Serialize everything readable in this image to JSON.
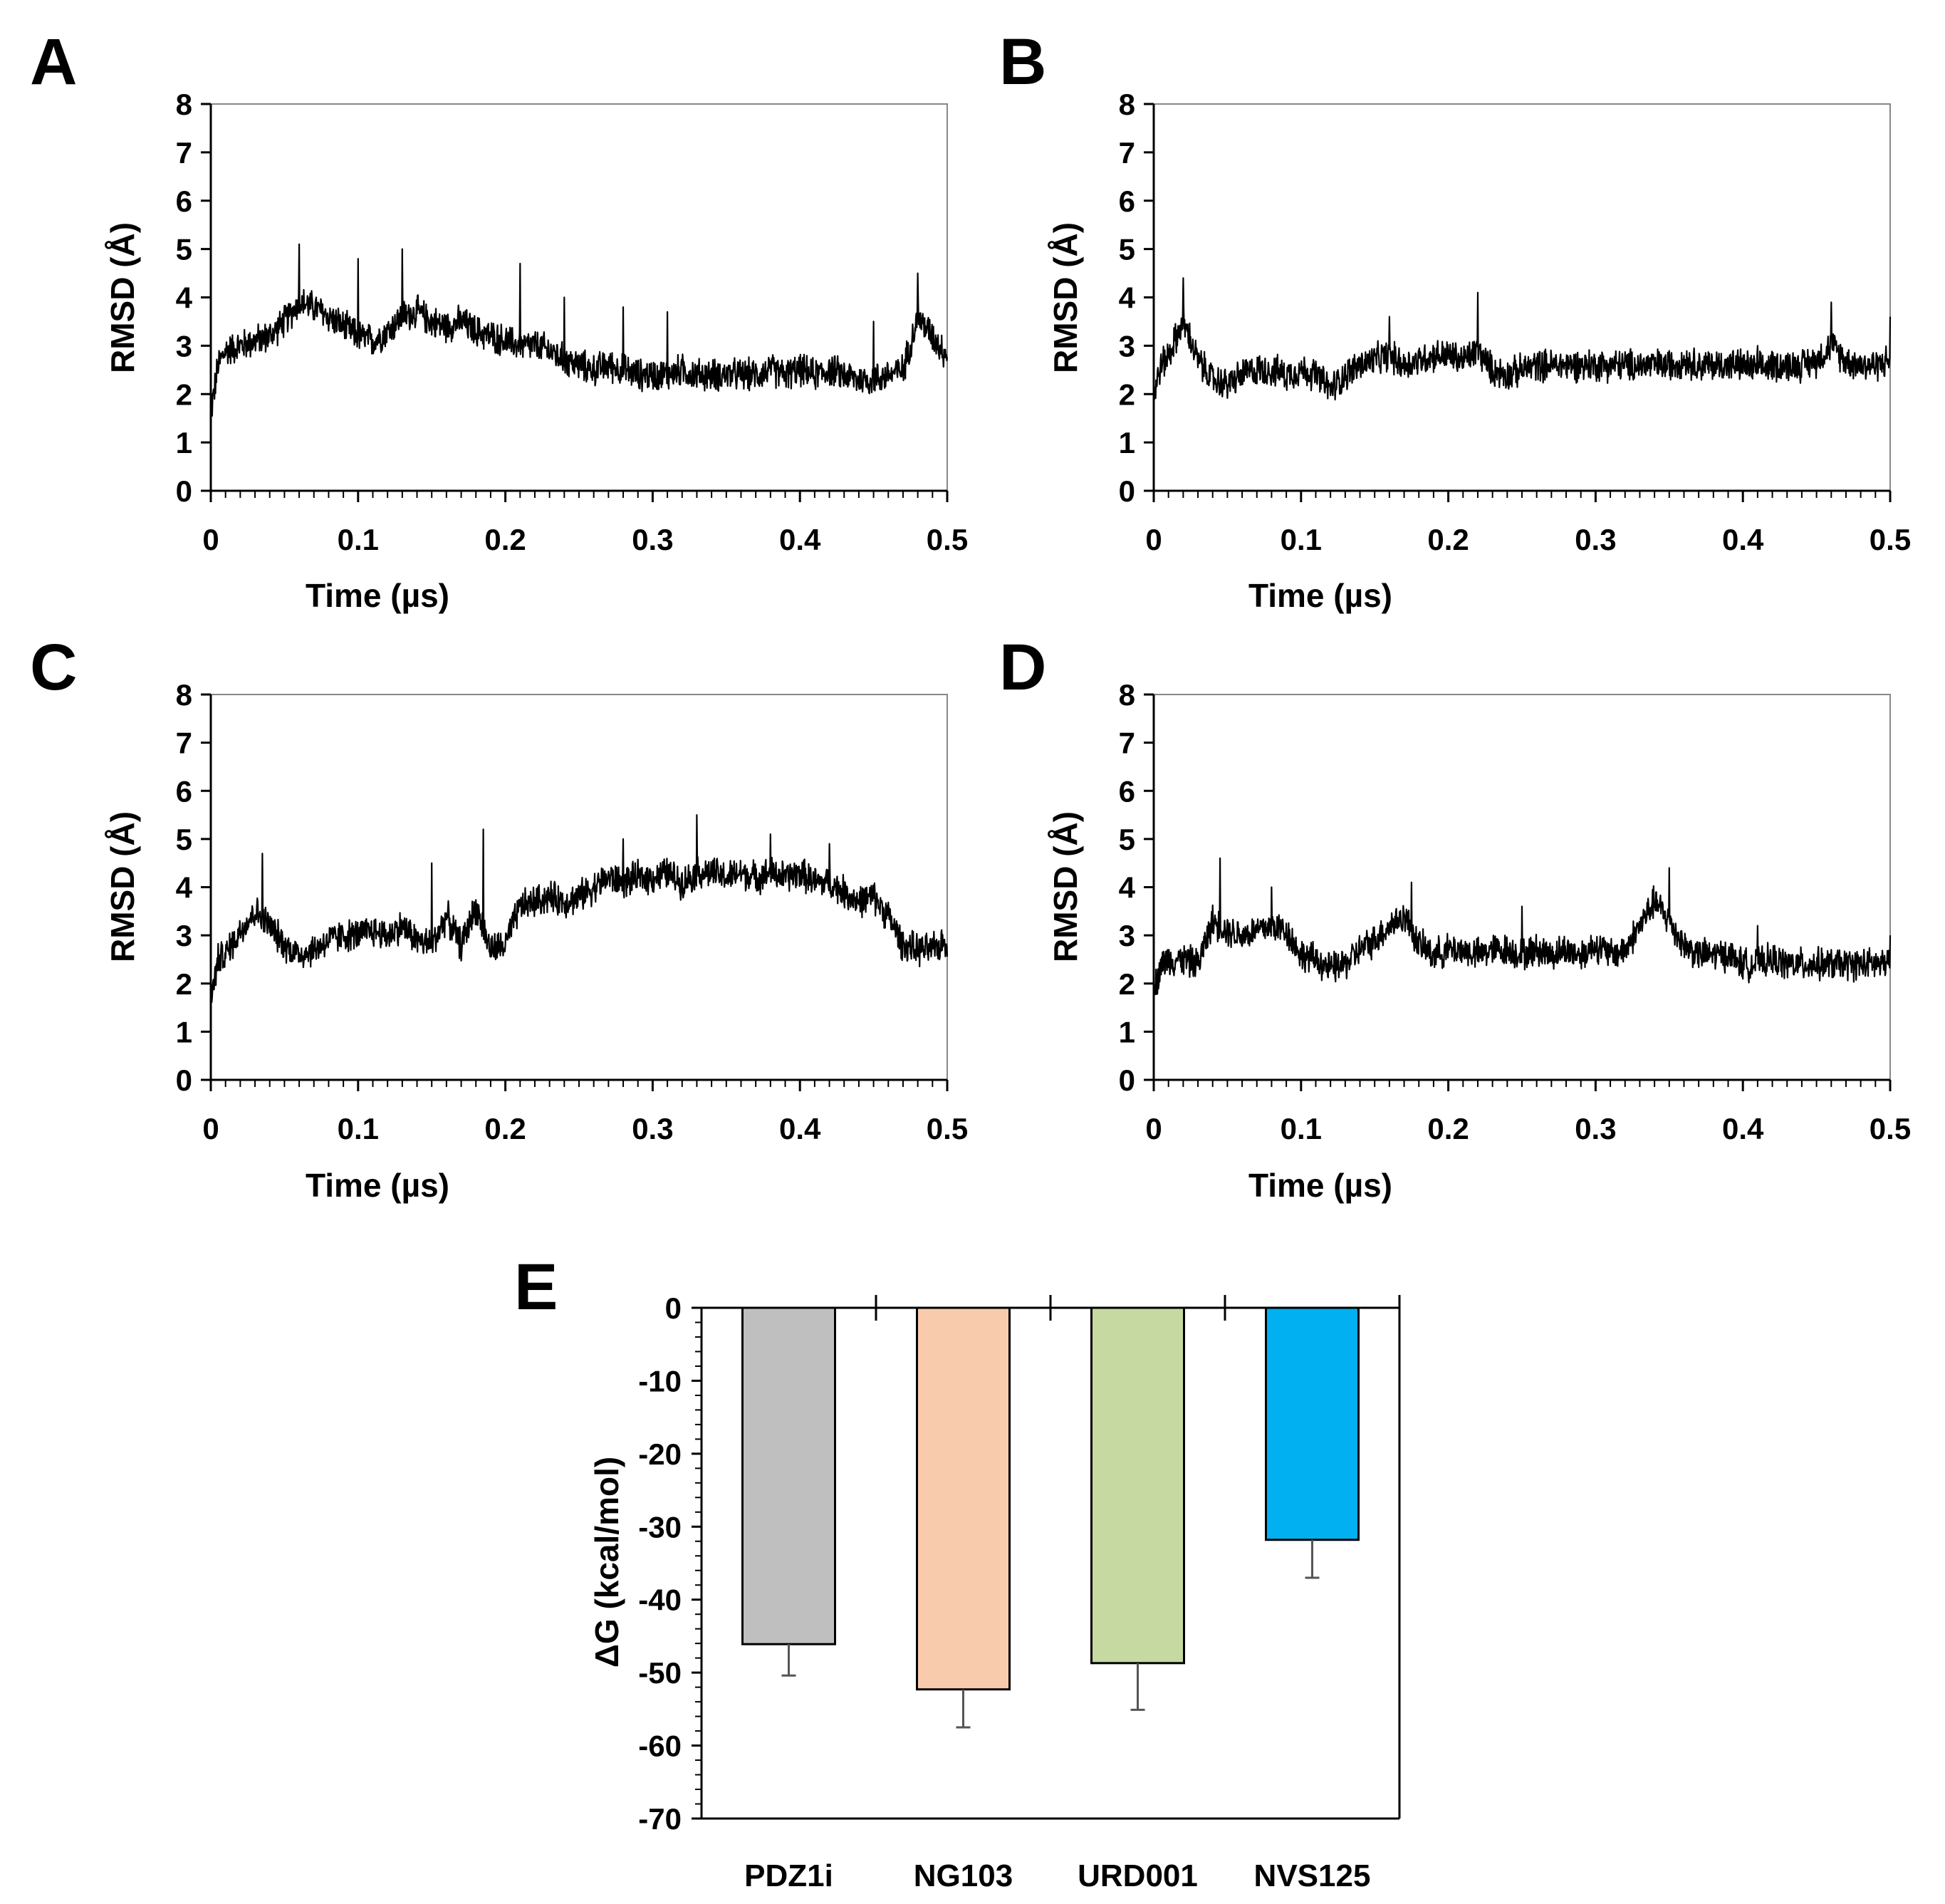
{
  "colors": {
    "axis": "#000000",
    "trace": "#000000",
    "error_bar": "#555555"
  },
  "chart_data": [
    {
      "panel": "A",
      "type": "line",
      "xlabel": "Time (µs)",
      "ylabel": "RMSD (Å)",
      "xlim": [
        0,
        0.5
      ],
      "ylim": [
        0,
        8
      ],
      "xticks": [
        "0",
        "0.1",
        "0.2",
        "0.3",
        "0.4",
        "0.5"
      ],
      "yticks": [
        "0",
        "1",
        "2",
        "3",
        "4",
        "5",
        "6",
        "7",
        "8"
      ],
      "series": [
        {
          "name": "RMSD",
          "x": [
            0,
            0.005,
            0.01,
            0.02,
            0.03,
            0.04,
            0.05,
            0.06,
            0.07,
            0.08,
            0.09,
            0.1,
            0.11,
            0.12,
            0.13,
            0.14,
            0.15,
            0.16,
            0.17,
            0.18,
            0.19,
            0.2,
            0.21,
            0.22,
            0.23,
            0.24,
            0.25,
            0.26,
            0.27,
            0.28,
            0.29,
            0.3,
            0.31,
            0.32,
            0.33,
            0.34,
            0.35,
            0.36,
            0.37,
            0.38,
            0.39,
            0.4,
            0.41,
            0.42,
            0.43,
            0.44,
            0.45,
            0.46,
            0.47,
            0.48,
            0.49,
            0.5
          ],
          "y": [
            1.6,
            2.6,
            2.9,
            3.0,
            3.1,
            3.2,
            3.5,
            3.9,
            3.8,
            3.6,
            3.4,
            3.2,
            3.1,
            3.3,
            3.6,
            3.7,
            3.5,
            3.4,
            3.5,
            3.3,
            3.2,
            3.1,
            3.0,
            3.0,
            2.9,
            2.7,
            2.6,
            2.5,
            2.6,
            2.5,
            2.4,
            2.4,
            2.4,
            2.5,
            2.4,
            2.4,
            2.4,
            2.4,
            2.4,
            2.5,
            2.4,
            2.5,
            2.4,
            2.5,
            2.4,
            2.3,
            2.3,
            2.4,
            2.5,
            3.6,
            3.2,
            2.8
          ],
          "spikes": [
            [
              0.06,
              5.1
            ],
            [
              0.1,
              4.8
            ],
            [
              0.13,
              5.0
            ],
            [
              0.21,
              4.7
            ],
            [
              0.24,
              4.0
            ],
            [
              0.28,
              3.8
            ],
            [
              0.31,
              3.7
            ],
            [
              0.45,
              3.5
            ],
            [
              0.48,
              4.5
            ]
          ]
        }
      ]
    },
    {
      "panel": "B",
      "type": "line",
      "xlabel": "Time (µs)",
      "ylabel": "RMSD (Å)",
      "xlim": [
        0,
        0.5
      ],
      "ylim": [
        0,
        8
      ],
      "xticks": [
        "0",
        "0.1",
        "0.2",
        "0.3",
        "0.4",
        "0.5"
      ],
      "yticks": [
        "0",
        "1",
        "2",
        "3",
        "4",
        "5",
        "6",
        "7",
        "8"
      ],
      "series": [
        {
          "name": "RMSD",
          "x": [
            0,
            0.005,
            0.01,
            0.02,
            0.03,
            0.04,
            0.05,
            0.06,
            0.07,
            0.08,
            0.09,
            0.1,
            0.11,
            0.12,
            0.13,
            0.14,
            0.15,
            0.16,
            0.17,
            0.18,
            0.19,
            0.2,
            0.21,
            0.22,
            0.23,
            0.24,
            0.25,
            0.26,
            0.27,
            0.28,
            0.29,
            0.3,
            0.31,
            0.32,
            0.33,
            0.34,
            0.35,
            0.36,
            0.37,
            0.38,
            0.39,
            0.4,
            0.41,
            0.42,
            0.43,
            0.44,
            0.45,
            0.46,
            0.47,
            0.48,
            0.49,
            0.5
          ],
          "y": [
            2.0,
            2.6,
            2.8,
            3.5,
            2.7,
            2.3,
            2.2,
            2.4,
            2.5,
            2.5,
            2.4,
            2.5,
            2.4,
            2.1,
            2.4,
            2.6,
            2.7,
            2.8,
            2.6,
            2.7,
            2.8,
            2.8,
            2.7,
            2.9,
            2.5,
            2.4,
            2.5,
            2.6,
            2.6,
            2.6,
            2.6,
            2.6,
            2.6,
            2.6,
            2.6,
            2.6,
            2.6,
            2.7,
            2.6,
            2.6,
            2.6,
            2.6,
            2.5,
            2.6,
            2.6,
            2.6,
            2.7,
            3.0,
            2.7,
            2.6,
            2.6,
            2.7
          ],
          "spikes": [
            [
              0.02,
              4.4
            ],
            [
              0.16,
              3.6
            ],
            [
              0.22,
              4.1
            ],
            [
              0.41,
              3.0
            ],
            [
              0.46,
              3.9
            ],
            [
              0.5,
              3.6
            ]
          ]
        }
      ]
    },
    {
      "panel": "C",
      "type": "line",
      "xlabel": "Time (µs)",
      "ylabel": "RMSD (Å)",
      "xlim": [
        0,
        0.5
      ],
      "ylim": [
        0,
        8
      ],
      "xticks": [
        "0",
        "0.1",
        "0.2",
        "0.3",
        "0.4",
        "0.5"
      ],
      "yticks": [
        "0",
        "1",
        "2",
        "3",
        "4",
        "5",
        "6",
        "7",
        "8"
      ],
      "series": [
        {
          "name": "RMSD",
          "x": [
            0,
            0.005,
            0.01,
            0.02,
            0.03,
            0.04,
            0.05,
            0.06,
            0.07,
            0.08,
            0.09,
            0.1,
            0.11,
            0.12,
            0.13,
            0.14,
            0.15,
            0.16,
            0.17,
            0.18,
            0.19,
            0.2,
            0.21,
            0.22,
            0.23,
            0.24,
            0.25,
            0.26,
            0.27,
            0.28,
            0.29,
            0.3,
            0.31,
            0.32,
            0.33,
            0.34,
            0.35,
            0.36,
            0.37,
            0.38,
            0.39,
            0.4,
            0.41,
            0.42,
            0.43,
            0.44,
            0.45,
            0.46,
            0.47,
            0.48,
            0.49,
            0.5
          ],
          "y": [
            1.7,
            2.5,
            2.6,
            3.1,
            3.5,
            3.2,
            2.8,
            2.6,
            2.7,
            2.9,
            3.0,
            3.0,
            3.1,
            3.0,
            3.2,
            2.9,
            2.8,
            3.4,
            2.8,
            3.6,
            2.7,
            2.8,
            3.6,
            3.7,
            3.8,
            3.7,
            3.8,
            4.0,
            4.2,
            4.1,
            4.2,
            4.2,
            4.3,
            4.1,
            4.3,
            4.3,
            4.2,
            4.3,
            4.2,
            4.3,
            4.2,
            4.3,
            4.1,
            4.1,
            3.9,
            3.7,
            3.8,
            3.4,
            2.8,
            2.7,
            2.7,
            2.9
          ],
          "spikes": [
            [
              0.035,
              4.7
            ],
            [
              0.15,
              4.5
            ],
            [
              0.185,
              5.2
            ],
            [
              0.28,
              5.0
            ],
            [
              0.33,
              5.5
            ],
            [
              0.38,
              5.1
            ],
            [
              0.42,
              4.9
            ]
          ]
        }
      ]
    },
    {
      "panel": "D",
      "type": "line",
      "xlabel": "Time (µs)",
      "ylabel": "RMSD (Å)",
      "xlim": [
        0,
        0.5
      ],
      "ylim": [
        0,
        8
      ],
      "xticks": [
        "0",
        "0.1",
        "0.2",
        "0.3",
        "0.4",
        "0.5"
      ],
      "yticks": [
        "0",
        "1",
        "2",
        "3",
        "4",
        "5",
        "6",
        "7",
        "8"
      ],
      "series": [
        {
          "name": "RMSD",
          "x": [
            0,
            0.005,
            0.01,
            0.02,
            0.03,
            0.04,
            0.05,
            0.06,
            0.07,
            0.08,
            0.09,
            0.1,
            0.11,
            0.12,
            0.13,
            0.14,
            0.15,
            0.16,
            0.17,
            0.18,
            0.19,
            0.2,
            0.21,
            0.22,
            0.23,
            0.24,
            0.25,
            0.26,
            0.27,
            0.28,
            0.29,
            0.3,
            0.31,
            0.32,
            0.33,
            0.34,
            0.35,
            0.36,
            0.37,
            0.38,
            0.39,
            0.4,
            0.41,
            0.42,
            0.43,
            0.44,
            0.45,
            0.46,
            0.47,
            0.48,
            0.49,
            0.5
          ],
          "y": [
            1.8,
            2.4,
            2.5,
            2.5,
            2.4,
            3.3,
            3.1,
            3.0,
            3.1,
            3.2,
            3.1,
            2.6,
            2.5,
            2.3,
            2.4,
            2.7,
            2.9,
            3.2,
            3.4,
            2.8,
            2.6,
            2.7,
            2.7,
            2.6,
            2.7,
            2.7,
            2.6,
            2.7,
            2.6,
            2.7,
            2.6,
            2.8,
            2.6,
            2.7,
            3.2,
            3.7,
            3.3,
            2.8,
            2.6,
            2.6,
            2.6,
            2.4,
            2.4,
            2.5,
            2.4,
            2.4,
            2.4,
            2.4,
            2.4,
            2.4,
            2.4,
            2.4
          ],
          "spikes": [
            [
              0.045,
              4.6
            ],
            [
              0.08,
              4.0
            ],
            [
              0.175,
              4.1
            ],
            [
              0.25,
              3.6
            ],
            [
              0.35,
              4.4
            ],
            [
              0.41,
              3.2
            ],
            [
              0.5,
              3.0
            ]
          ]
        }
      ]
    },
    {
      "panel": "E",
      "type": "bar",
      "ylabel": "ΔG (kcal/mol)",
      "ylim": [
        -70,
        0
      ],
      "yticks": [
        "0",
        "-10",
        "-20",
        "-30",
        "-40",
        "-50",
        "-60",
        "-70"
      ],
      "categories": [
        "PDZ1i",
        "NG103",
        "URD001",
        "NVS125"
      ],
      "values": [
        -46.1,
        -52.3,
        -48.7,
        -31.8
      ],
      "errors": [
        4.3,
        5.2,
        6.4,
        5.2
      ],
      "bar_colors": [
        "#bfbfbf",
        "#f8cbad",
        "#c5d9a0",
        "#00b0f0"
      ]
    }
  ]
}
